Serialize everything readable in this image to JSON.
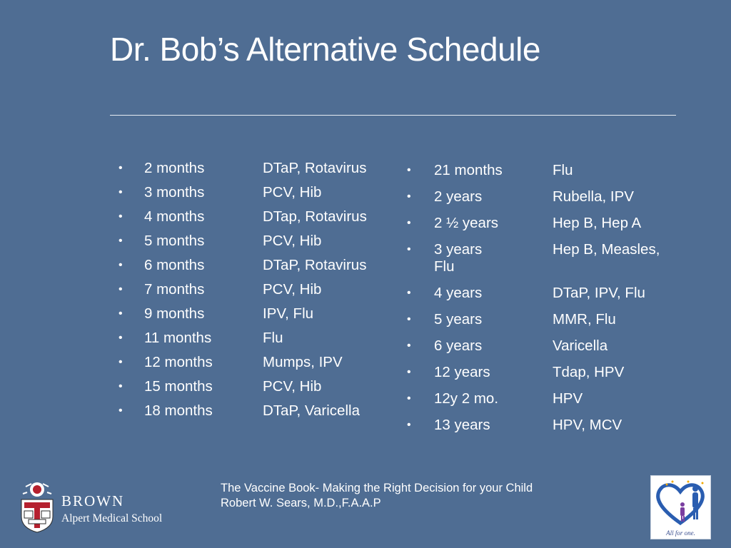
{
  "title": "Dr. Bob’s Alternative Schedule",
  "bullet_char": "•",
  "left_schedule": [
    {
      "age": "2 months",
      "vaccines": "DTaP, Rotavirus"
    },
    {
      "age": "3 months",
      "vaccines": "PCV, Hib"
    },
    {
      "age": "4 months",
      "vaccines": "DTap, Rotavirus"
    },
    {
      "age": "5 months",
      "vaccines": "PCV, Hib"
    },
    {
      "age": "6 months",
      "vaccines": "DTaP, Rotavirus"
    },
    {
      "age": "7 months",
      "vaccines": "PCV, Hib"
    },
    {
      "age": "9 months",
      "vaccines": "IPV, Flu"
    },
    {
      "age": "11 months",
      "vaccines": "Flu"
    },
    {
      "age": "12 months",
      "vaccines": "Mumps, IPV"
    },
    {
      "age": "15 months",
      "vaccines": "PCV, Hib"
    },
    {
      "age": "18 months",
      "vaccines": "DTaP, Varicella"
    }
  ],
  "right_schedule": [
    {
      "age": "21 months",
      "vaccines": "Flu"
    },
    {
      "age": "2 years",
      "vaccines": "Rubella, IPV"
    },
    {
      "age": "2 ½ years",
      "vaccines": "Hep B, Hep A"
    },
    {
      "age": "3 years",
      "vaccines": "Hep B, Measles,",
      "continuation": "Flu"
    },
    {
      "age": "4 years",
      "vaccines": "DTaP, IPV, Flu"
    },
    {
      "age": "5 years",
      "vaccines": "MMR, Flu"
    },
    {
      "age": "6 years",
      "vaccines": "Varicella"
    },
    {
      "age": "12 years",
      "vaccines": "Tdap, HPV"
    },
    {
      "age": "12y 2 mo.",
      "vaccines": "HPV"
    },
    {
      "age": "13 years",
      "vaccines": "HPV, MCV"
    }
  ],
  "citation": {
    "line1": "The Vaccine Book- Making the Right Decision for your Child",
    "line2": "Robert W. Sears, M.D.,F.A.A.P"
  },
  "brown_logo": {
    "name": "BROWN",
    "subtitle": "Alpert Medical School",
    "icon": "brown-shield-icon"
  },
  "book_logo": {
    "tagline": "All for one.",
    "icon": "family-heart-icon"
  },
  "colors": {
    "background": "#4f6d93",
    "text": "#ffffff",
    "shield_red": "#b5202e"
  }
}
